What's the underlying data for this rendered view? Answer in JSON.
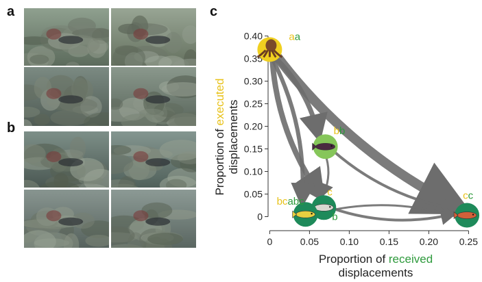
{
  "figure": {
    "panels": {
      "a": "a",
      "b": "b",
      "c": "c"
    },
    "colors": {
      "executed": "#e8c21a",
      "received": "#2e9a3c",
      "arrow": "#6d6d6d",
      "node_green": "#1e8a5a",
      "node_light": "#86c65a",
      "node_yellow": "#f0d020"
    }
  },
  "photos": {
    "a": [
      {
        "name": "photo-a1",
        "tone": [
          "#8fa08f",
          "#5c6b5c"
        ]
      },
      {
        "name": "photo-a2",
        "tone": [
          "#98a594",
          "#65715f"
        ]
      },
      {
        "name": "photo-a3",
        "tone": [
          "#7b8a82",
          "#4f5b54"
        ]
      },
      {
        "name": "photo-a4",
        "tone": [
          "#8a988c",
          "#58645a"
        ]
      }
    ],
    "b": [
      {
        "name": "photo-b1",
        "tone": [
          "#7d8f88",
          "#4a5752"
        ]
      },
      {
        "name": "photo-b2",
        "tone": [
          "#849690",
          "#50605a"
        ]
      },
      {
        "name": "photo-b3",
        "tone": [
          "#889590",
          "#56625d"
        ]
      },
      {
        "name": "photo-b4",
        "tone": [
          "#8c9a95",
          "#5a6661"
        ]
      }
    ]
  },
  "chart_data": {
    "type": "scatter",
    "xlabel_pre": "Proportion of ",
    "xlabel_key": "received",
    "xlabel_line2": "displacements",
    "ylabel_pre": "Proportion of ",
    "ylabel_key": "executed",
    "ylabel_line2": "displacements",
    "xlim": [
      -0.015,
      0.26
    ],
    "ylim": [
      -0.025,
      0.41
    ],
    "xticks": [
      0,
      0.05,
      0.1,
      0.15,
      0.2,
      0.25
    ],
    "xtick_labels": [
      "0",
      "0.05",
      "0.10",
      "0.15",
      "0.20",
      "0.25"
    ],
    "yticks": [
      0,
      0.05,
      0.1,
      0.15,
      0.2,
      0.25,
      0.3,
      0.35,
      0.4
    ],
    "ytick_labels": [
      "0",
      "0.05",
      "0.10",
      "0.15",
      "0.20",
      "0.25",
      "0.30",
      "0.35",
      "0.40"
    ],
    "nodes": [
      {
        "id": "octopus",
        "x": 0.0,
        "y": 0.37,
        "color": "#f0d020",
        "icon": "octopus-icon",
        "label": [
          [
            "a",
            "#e8c21a"
          ],
          [
            "a",
            "#2e9a3c"
          ]
        ]
      },
      {
        "id": "damselfish",
        "x": 0.07,
        "y": 0.155,
        "color": "#86c65a",
        "icon": "damselfish-icon",
        "label": [
          [
            "b",
            "#e8c21a"
          ],
          [
            "b",
            "#2e9a3c"
          ]
        ]
      },
      {
        "id": "goatfish",
        "x": 0.068,
        "y": 0.02,
        "color": "#1e8a5a",
        "icon": "goatfish-icon",
        "label": [
          [
            "c",
            "#e8c21a"
          ],
          [
            "b",
            "#2e9a3c"
          ]
        ]
      },
      {
        "id": "wrasse",
        "x": 0.045,
        "y": 0.005,
        "color": "#1e8a5a",
        "icon": "wrasse-icon",
        "label": [
          [
            "bc",
            "#e8c21a"
          ],
          [
            "abc",
            "#2e9a3c"
          ]
        ]
      },
      {
        "id": "grouper",
        "x": 0.248,
        "y": 0.003,
        "color": "#1e8a5a",
        "icon": "grouper-icon",
        "label": [
          [
            "c",
            "#e8c21a"
          ],
          [
            "c",
            "#2e9a3c"
          ]
        ]
      }
    ],
    "edges": [
      {
        "from": "octopus",
        "to": "grouper",
        "weight": 14
      },
      {
        "from": "octopus",
        "to": "damselfish",
        "weight": 7
      },
      {
        "from": "octopus",
        "to": "goatfish",
        "weight": 8
      },
      {
        "from": "octopus",
        "to": "wrasse",
        "weight": 6
      },
      {
        "from": "damselfish",
        "to": "grouper",
        "weight": 4
      },
      {
        "from": "damselfish",
        "to": "goatfish",
        "weight": 3
      },
      {
        "from": "goatfish",
        "to": "grouper",
        "weight": 4
      },
      {
        "from": "wrasse",
        "to": "grouper",
        "weight": 3
      },
      {
        "from": "wrasse",
        "to": "goatfish",
        "weight": 3
      }
    ]
  }
}
